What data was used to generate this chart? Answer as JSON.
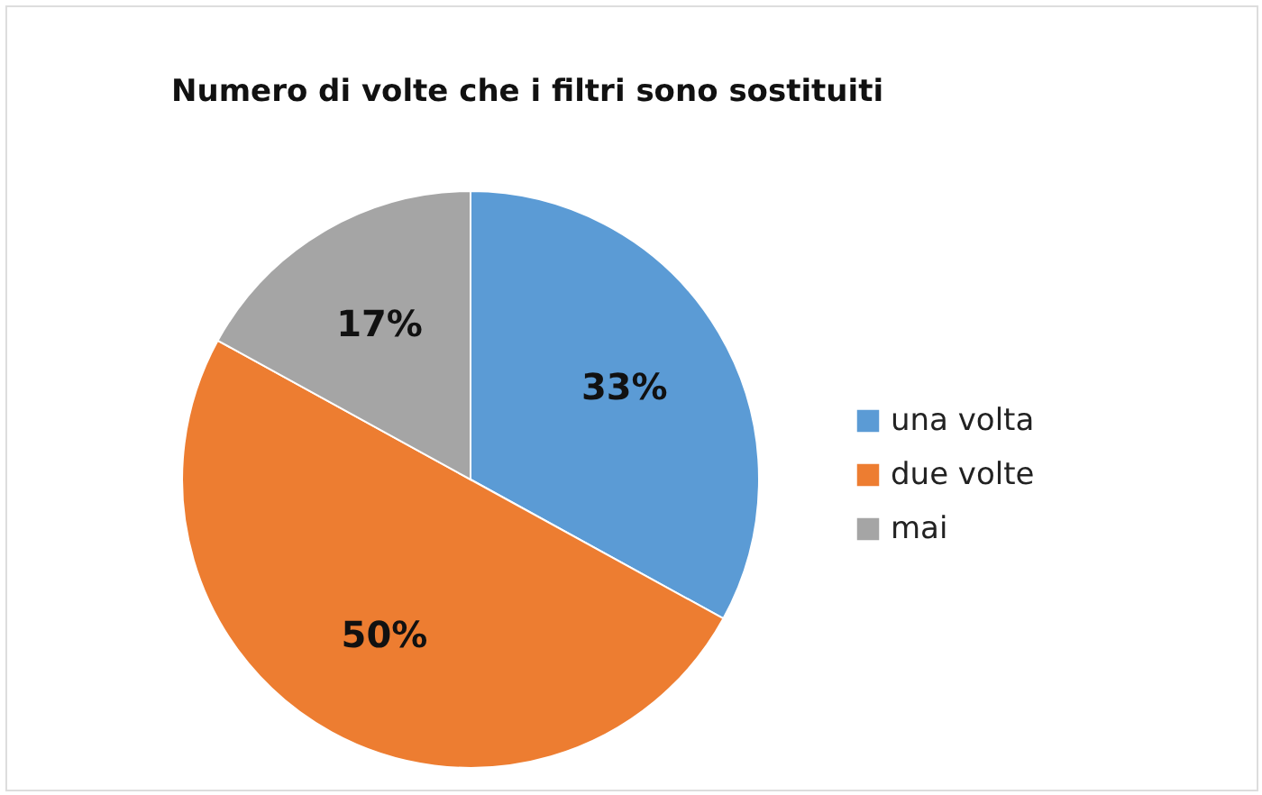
{
  "chart_data": {
    "type": "pie",
    "title": "Numero di volte che i filtri sono sostituiti",
    "categories": [
      "una  volta",
      "due volte",
      "mai"
    ],
    "values": [
      33,
      50,
      17
    ],
    "colors": [
      "#5b9bd5",
      "#ed7d31",
      "#a5a5a5"
    ],
    "value_labels": [
      "33%",
      "50%",
      "17%"
    ],
    "legend": "right"
  }
}
